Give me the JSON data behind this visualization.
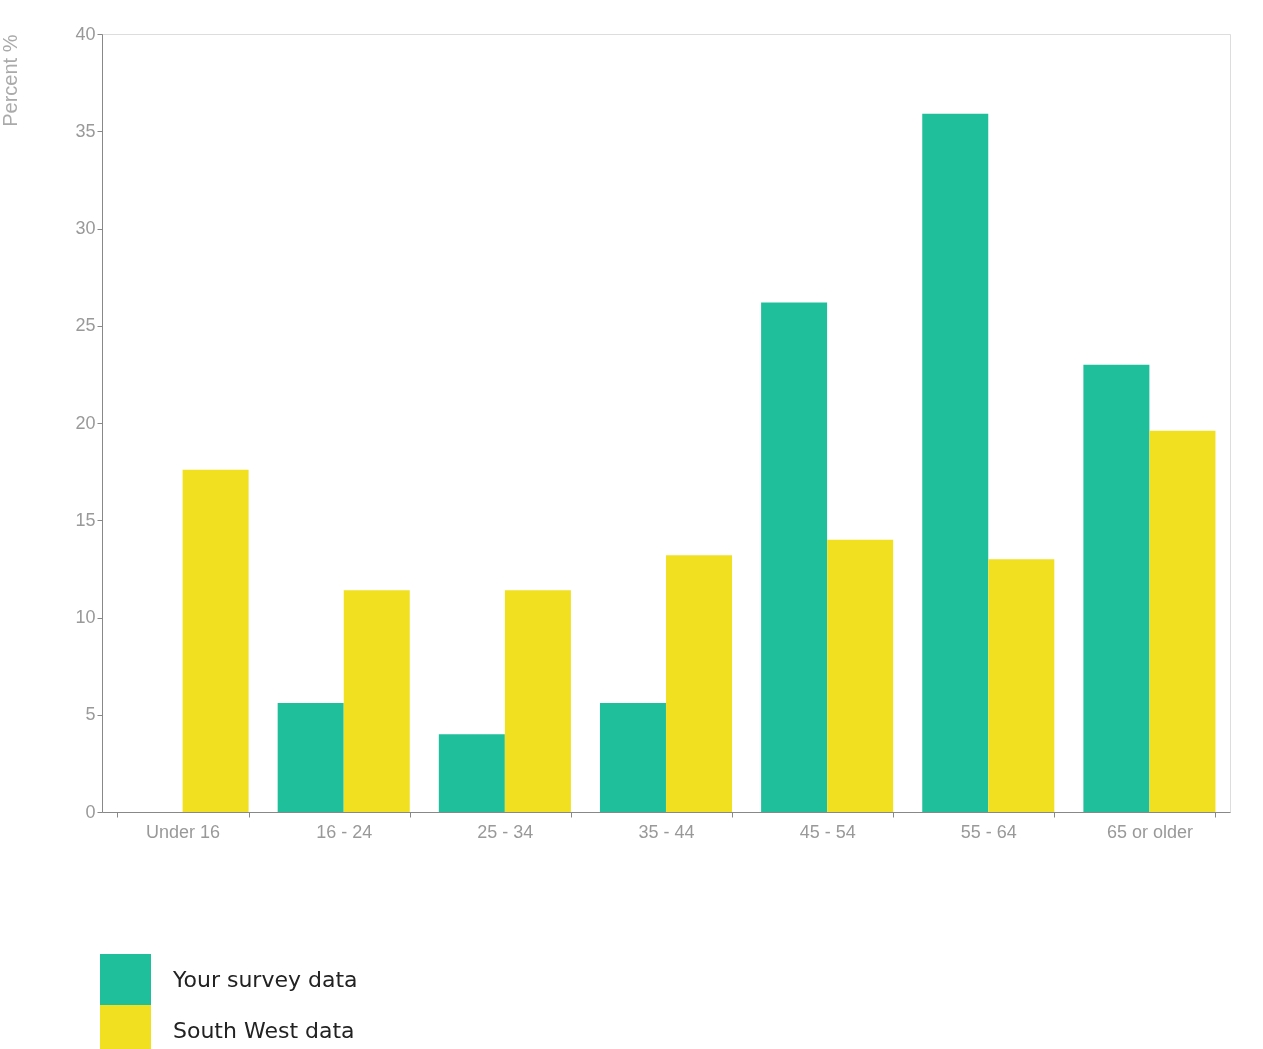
{
  "chart_data": {
    "type": "bar",
    "ylabel": "Percent %",
    "categories": [
      "Under 16",
      "16 - 24",
      "25 - 34",
      "35 - 44",
      "45 - 54",
      "55 - 64",
      "65 or older"
    ],
    "series": [
      {
        "name": "Your survey data",
        "color": "#1fbf9c",
        "values": [
          0,
          5.6,
          4.0,
          5.6,
          26.2,
          35.9,
          23.0
        ]
      },
      {
        "name": "South West data",
        "color": "#f0e020",
        "values": [
          17.6,
          11.4,
          11.4,
          13.2,
          14.0,
          13.0,
          19.6
        ]
      }
    ],
    "ylim": [
      0,
      40
    ],
    "yticks": [
      0,
      5,
      10,
      15,
      20,
      25,
      30,
      35,
      40
    ],
    "grid": false,
    "legend": "bottom left"
  }
}
